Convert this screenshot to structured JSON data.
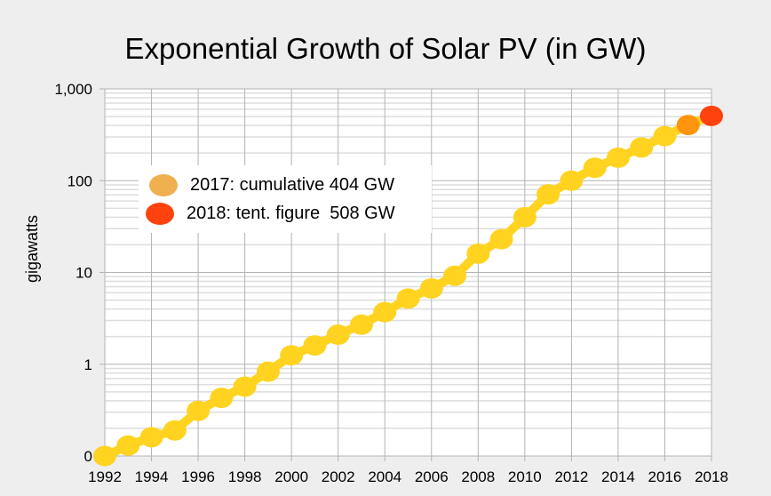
{
  "chart_data": {
    "type": "line",
    "title": "Exponential Growth of Solar PV (in GW)",
    "xlabel": "",
    "ylabel": "gigawatts",
    "yscale": "log",
    "ylim": [
      0.1,
      1000
    ],
    "xlim": [
      1992,
      2018
    ],
    "y_ticks": [
      {
        "value": 0.1,
        "label": "0"
      },
      {
        "value": 1,
        "label": "1"
      },
      {
        "value": 10,
        "label": "10"
      },
      {
        "value": 100,
        "label": "100"
      },
      {
        "value": 1000,
        "label": "1,000"
      }
    ],
    "x_ticks": [
      "1992",
      "1994",
      "1996",
      "1998",
      "2000",
      "2002",
      "2004",
      "2006",
      "2008",
      "2010",
      "2012",
      "2014",
      "2016",
      "2018"
    ],
    "grid": true,
    "series": [
      {
        "x": [
          1992,
          1993,
          1994,
          1995,
          1996,
          1997,
          1998,
          1999,
          2000,
          2001,
          2002,
          2003,
          2004,
          2005,
          2006,
          2007,
          2008,
          2009,
          2010,
          2011,
          2012,
          2013,
          2014,
          2015,
          2016,
          2017,
          2018
        ],
        "values": [
          0.1,
          0.13,
          0.16,
          0.19,
          0.31,
          0.43,
          0.57,
          0.83,
          1.25,
          1.6,
          2.1,
          2.7,
          3.7,
          5.2,
          6.7,
          9.2,
          16,
          23,
          40,
          71,
          100,
          138,
          178,
          230,
          306,
          404,
          508
        ],
        "color": "#ffd320",
        "highlight": {
          "2017": "#ff950e",
          "2018": "#ff420e"
        }
      }
    ],
    "legend": {
      "placement": "upper-left",
      "entries": [
        {
          "label": "2017: cumulative 404 GW",
          "color": "#f0b050"
        },
        {
          "label": "2018: tent. figure  508 GW",
          "color": "#ff420e"
        }
      ]
    }
  }
}
